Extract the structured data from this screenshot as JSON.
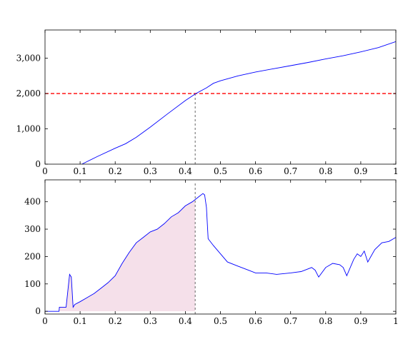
{
  "chart_data": [
    {
      "type": "line",
      "xlim": [
        0,
        1
      ],
      "ylim": [
        0,
        3800
      ],
      "xticks": [
        0,
        0.1,
        0.2,
        0.3,
        0.4,
        0.5,
        0.6,
        0.7,
        0.8,
        0.9,
        1
      ],
      "xtick_labels": [
        "0",
        "0.1",
        "0.2",
        "0.3",
        "0.4",
        "0.5",
        "0.6",
        "0.7",
        "0.8",
        "0.9",
        "1"
      ],
      "yticks": [
        0,
        1000,
        2000,
        3000
      ],
      "ytick_labels": [
        "0",
        "1,000",
        "2,000",
        "3,000"
      ],
      "grid": false,
      "series": [
        {
          "color": "#0000ff",
          "x": [
            0.105,
            0.15,
            0.2,
            0.23,
            0.26,
            0.3,
            0.35,
            0.4,
            0.43,
            0.46,
            0.48,
            0.5,
            0.55,
            0.6,
            0.65,
            0.7,
            0.75,
            0.8,
            0.85,
            0.9,
            0.95,
            1.0
          ],
          "y": [
            0,
            220,
            450,
            580,
            760,
            1050,
            1430,
            1800,
            2000,
            2160,
            2290,
            2360,
            2500,
            2610,
            2700,
            2790,
            2880,
            2980,
            3070,
            3180,
            3300,
            3470
          ]
        }
      ],
      "reference_lines": [
        {
          "orientation": "horizontal",
          "value": 2000,
          "color": "#ff0000",
          "style": "dashed"
        },
        {
          "orientation": "vertical",
          "value": 0.428,
          "color": "#555555",
          "style": "dashed"
        }
      ]
    },
    {
      "type": "area",
      "xlim": [
        0,
        1
      ],
      "ylim": [
        -10,
        480
      ],
      "xticks": [
        0,
        0.1,
        0.2,
        0.3,
        0.4,
        0.5,
        0.6,
        0.7,
        0.8,
        0.9,
        1
      ],
      "xtick_labels": [
        "0",
        "0.1",
        "0.2",
        "0.3",
        "0.4",
        "0.5",
        "0.6",
        "0.7",
        "0.8",
        "0.9",
        "1"
      ],
      "yticks": [
        0,
        100,
        200,
        300,
        400
      ],
      "ytick_labels": [
        "0",
        "100",
        "200",
        "300",
        "400"
      ],
      "grid": false,
      "shaded_region": {
        "from": 0,
        "to": 0.428,
        "color": "#f5e0ea"
      },
      "series": [
        {
          "color": "#0000ff",
          "x": [
            0,
            0.04,
            0.041,
            0.06,
            0.07,
            0.075,
            0.08,
            0.085,
            0.1,
            0.12,
            0.14,
            0.16,
            0.18,
            0.2,
            0.22,
            0.24,
            0.26,
            0.28,
            0.3,
            0.32,
            0.34,
            0.36,
            0.38,
            0.4,
            0.42,
            0.43,
            0.44,
            0.45,
            0.455,
            0.46,
            0.465,
            0.48,
            0.5,
            0.52,
            0.55,
            0.58,
            0.6,
            0.63,
            0.66,
            0.7,
            0.73,
            0.76,
            0.77,
            0.78,
            0.8,
            0.82,
            0.84,
            0.85,
            0.86,
            0.88,
            0.89,
            0.9,
            0.91,
            0.92,
            0.94,
            0.96,
            0.98,
            1.0
          ],
          "y": [
            0,
            0,
            15,
            15,
            135,
            125,
            15,
            25,
            35,
            50,
            65,
            85,
            105,
            130,
            175,
            215,
            250,
            270,
            290,
            300,
            320,
            345,
            360,
            385,
            400,
            410,
            420,
            430,
            425,
            380,
            265,
            240,
            210,
            180,
            165,
            150,
            140,
            140,
            135,
            140,
            145,
            160,
            150,
            125,
            160,
            175,
            170,
            160,
            130,
            190,
            210,
            200,
            220,
            180,
            225,
            250,
            255,
            270
          ]
        }
      ],
      "reference_lines": [
        {
          "orientation": "vertical",
          "value": 0.428,
          "color": "#555555",
          "style": "dashed"
        }
      ]
    }
  ]
}
